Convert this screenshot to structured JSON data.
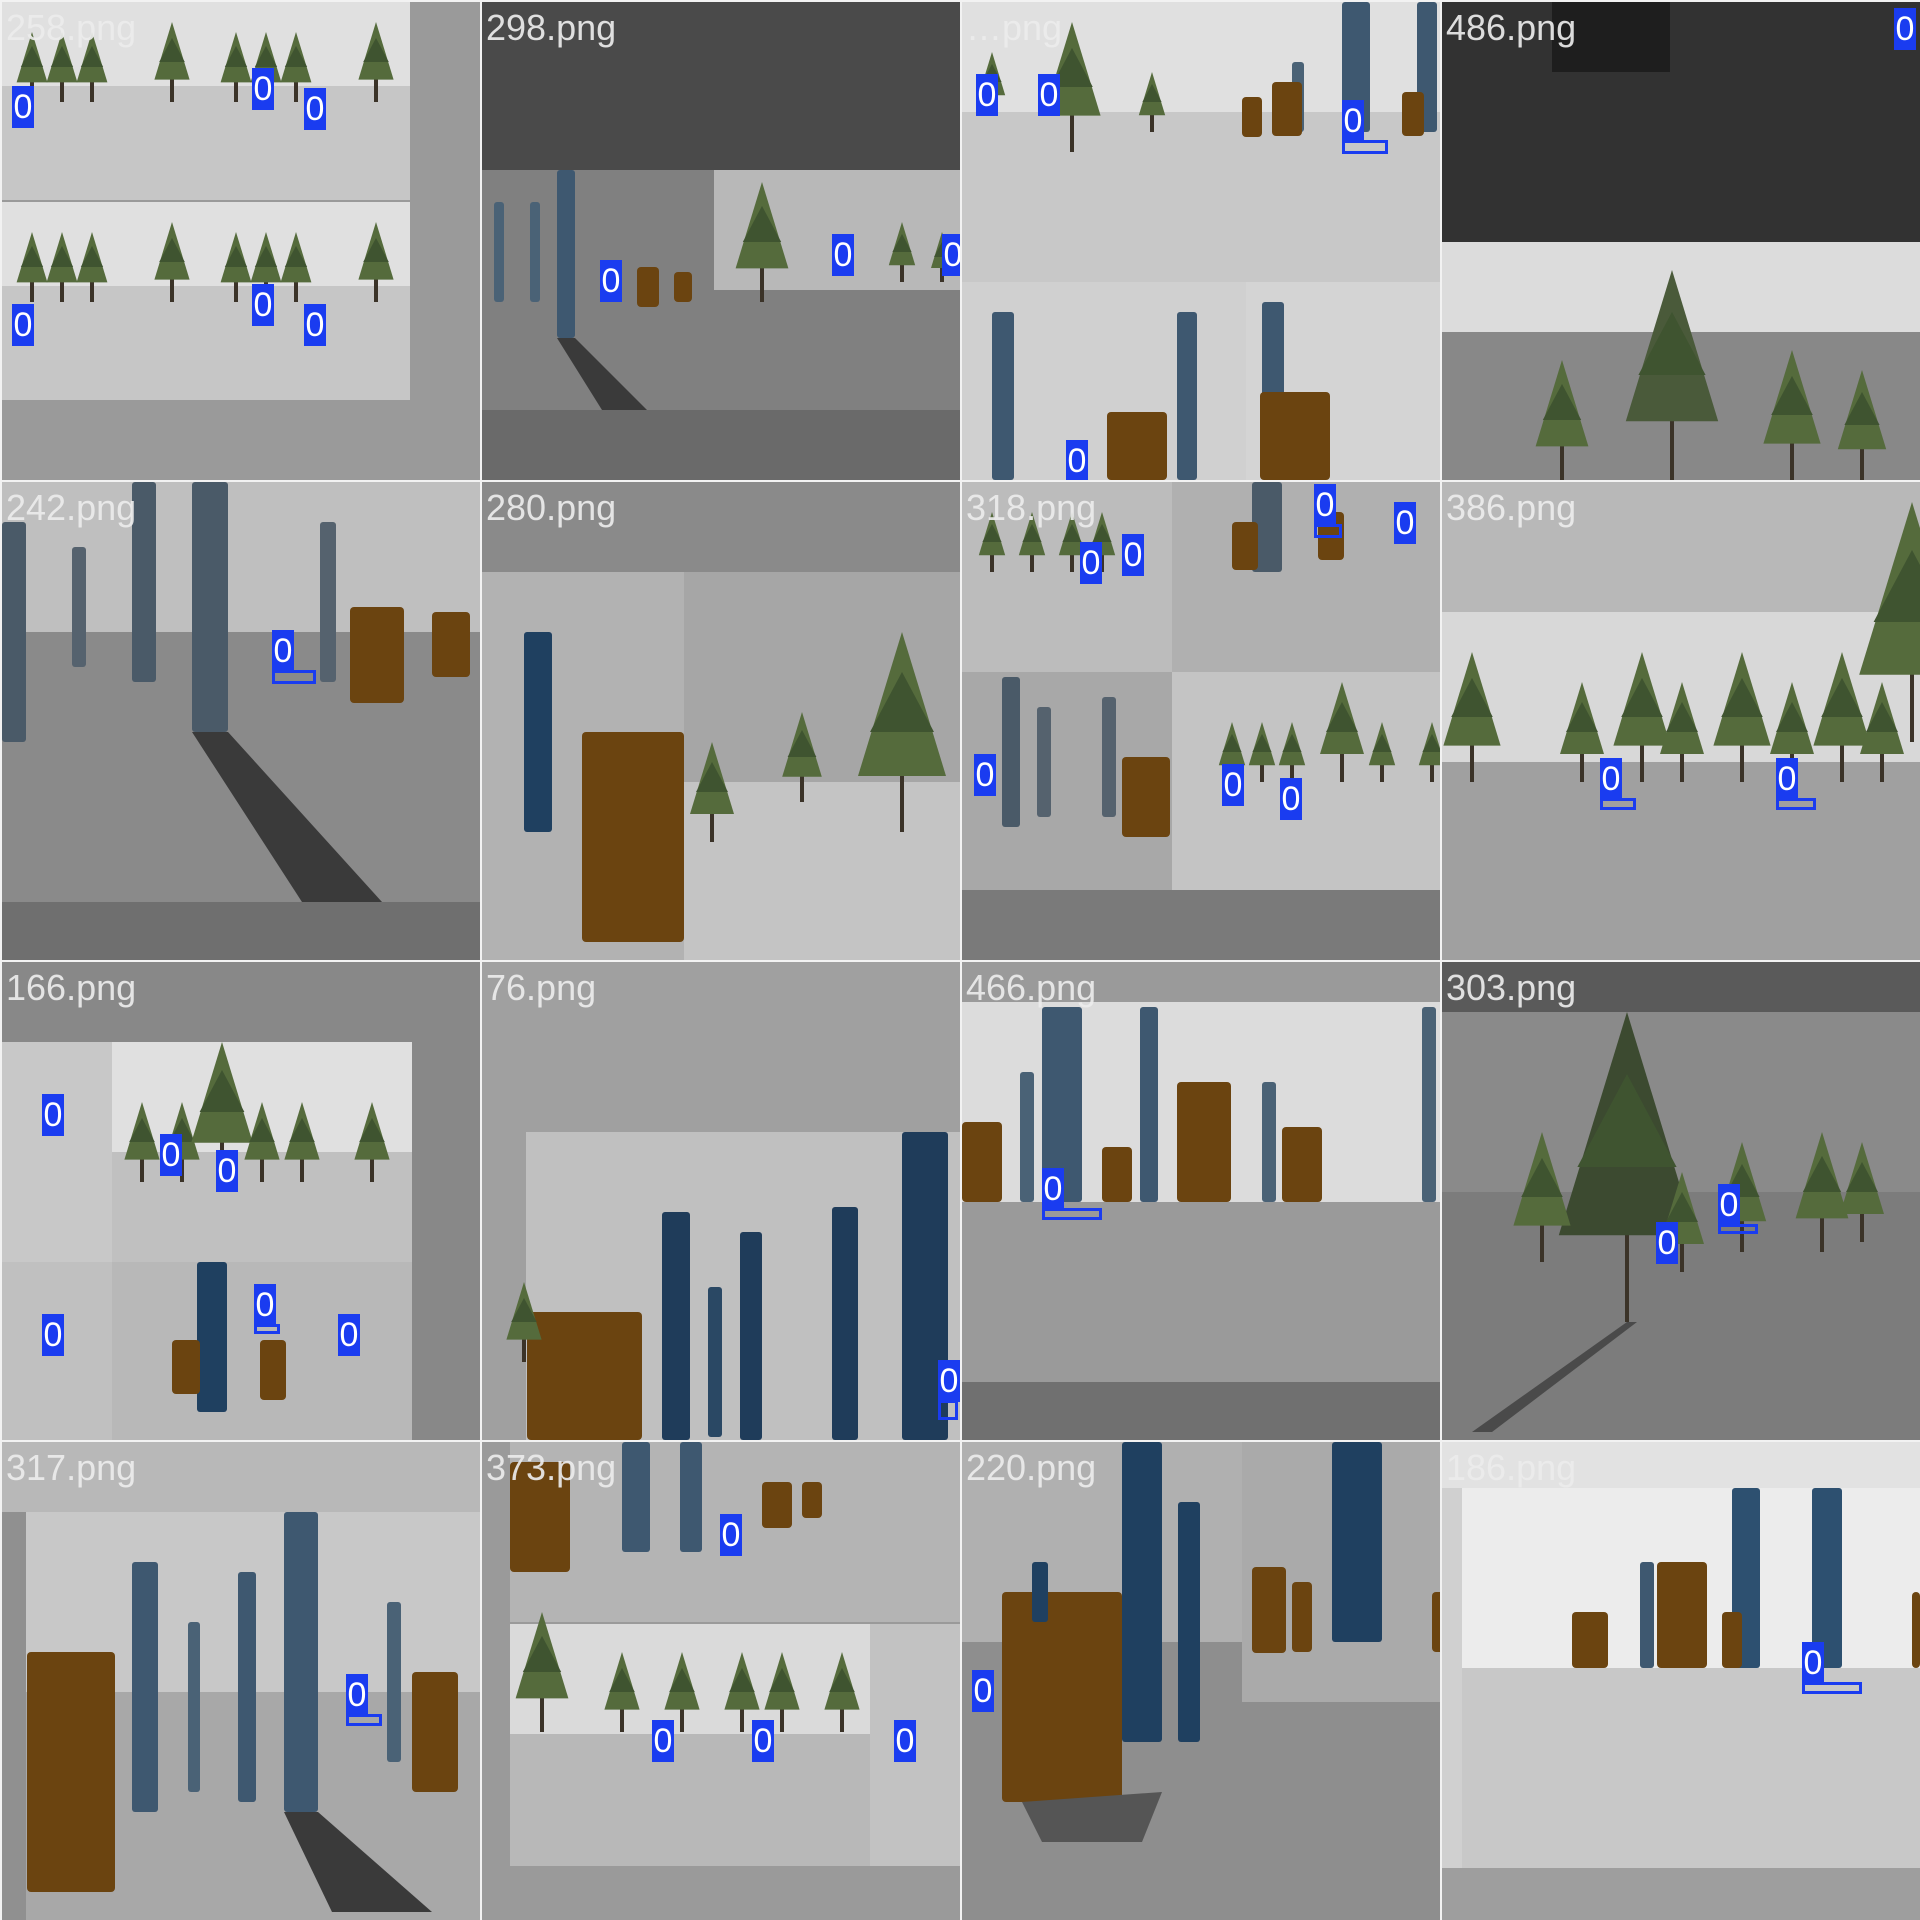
{
  "mosaic": {
    "label_color": "#1a3cf0",
    "tiles": [
      {
        "name": "258.png",
        "scene": "forest",
        "detections": 6
      },
      {
        "name": "298.png",
        "scene": "pillars",
        "detections": 3
      },
      {
        "name": "…png",
        "scene": "pillars",
        "detections": 4
      },
      {
        "name": "486.png",
        "scene": "forest-dark",
        "detections": 1
      },
      {
        "name": "242.png",
        "scene": "pillars",
        "detections": 1
      },
      {
        "name": "280.png",
        "scene": "pillars-forest",
        "detections": 0
      },
      {
        "name": "318.png",
        "scene": "mixed",
        "detections": 7
      },
      {
        "name": "386.png",
        "scene": "forest",
        "detections": 2
      },
      {
        "name": "166.png",
        "scene": "mixed",
        "detections": 6
      },
      {
        "name": "76.png",
        "scene": "pillars",
        "detections": 1
      },
      {
        "name": "466.png",
        "scene": "pillars",
        "detections": 1
      },
      {
        "name": "303.png",
        "scene": "forest-dark",
        "detections": 2
      },
      {
        "name": "317.png",
        "scene": "pillars",
        "detections": 1
      },
      {
        "name": "373.png",
        "scene": "mixed",
        "detections": 4
      },
      {
        "name": "220.png",
        "scene": "pillars",
        "detections": 1
      },
      {
        "name": "186.png",
        "scene": "pillars",
        "detections": 1
      }
    ]
  },
  "detection_class": "0"
}
